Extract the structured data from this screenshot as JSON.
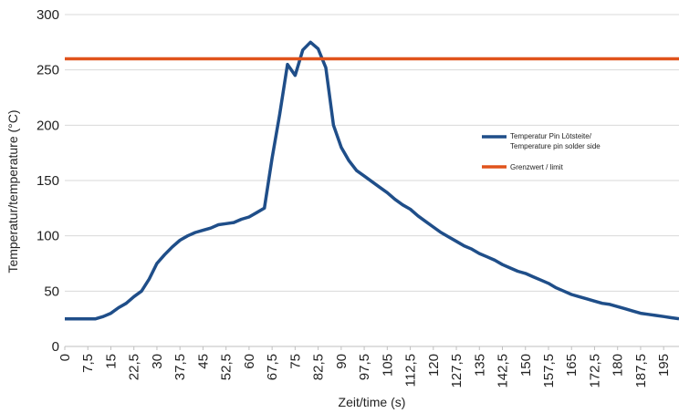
{
  "chart_data": {
    "type": "line",
    "xlabel": "Zeit/time (s)",
    "ylabel": "Temperatur/temperature (°C)",
    "ylim": [
      0,
      300
    ],
    "xlim": [
      0,
      200
    ],
    "y_ticks": [
      0,
      50,
      100,
      150,
      200,
      250,
      300
    ],
    "x_tick_labels": [
      "0",
      "7,5",
      "15",
      "22,5",
      "30",
      "37,5",
      "45",
      "52,5",
      "60",
      "67,5",
      "75",
      "82,5",
      "90",
      "97,5",
      "105",
      "112,5",
      "120",
      "127,5",
      "135",
      "142,5",
      "150",
      "157,5",
      "165",
      "172,5",
      "180",
      "187,5",
      "195"
    ],
    "grid": "horizontal",
    "legend_position": "right",
    "series": [
      {
        "name": "Temperatur Pin Lötsteite/ Temperature pin solder side",
        "color": "#1f4e89",
        "x": [
          0,
          2.5,
          5,
          7.5,
          10,
          12.5,
          15,
          17.5,
          20,
          22.5,
          25,
          27.5,
          30,
          32.5,
          35,
          37.5,
          40,
          42.5,
          45,
          47.5,
          50,
          52.5,
          55,
          57.5,
          60,
          62.5,
          65,
          67.5,
          70,
          72.5,
          75,
          77.5,
          80,
          82.5,
          85,
          87.5,
          90,
          92.5,
          95,
          97.5,
          100,
          102.5,
          105,
          107.5,
          110,
          112.5,
          115,
          117.5,
          120,
          122.5,
          125,
          127.5,
          130,
          132.5,
          135,
          137.5,
          140,
          142.5,
          145,
          147.5,
          150,
          152.5,
          155,
          157.5,
          160,
          162.5,
          165,
          167.5,
          170,
          172.5,
          175,
          177.5,
          180,
          182.5,
          185,
          187.5,
          190,
          192.5,
          195,
          197.5,
          200
        ],
        "values": [
          25,
          25,
          25,
          25,
          25,
          27,
          30,
          35,
          39,
          45,
          50,
          61,
          75,
          83,
          90,
          96,
          100,
          103,
          105,
          107,
          110,
          111,
          112,
          115,
          117,
          121,
          125,
          170,
          210,
          255,
          245,
          268,
          275,
          269,
          252,
          200,
          180,
          168,
          159,
          154,
          149,
          144,
          139,
          133,
          128,
          124,
          118,
          113,
          108,
          103,
          99,
          95,
          91,
          88,
          84,
          81,
          78,
          74,
          71,
          68,
          66,
          63,
          60,
          57,
          53,
          50,
          47,
          45,
          43,
          41,
          39,
          38,
          36,
          34,
          32,
          30,
          29,
          28,
          27,
          26,
          25
        ]
      },
      {
        "name": "Grenzwert / limit",
        "color": "#e0531c",
        "x": [
          0,
          200
        ],
        "values": [
          260,
          260
        ]
      }
    ]
  }
}
